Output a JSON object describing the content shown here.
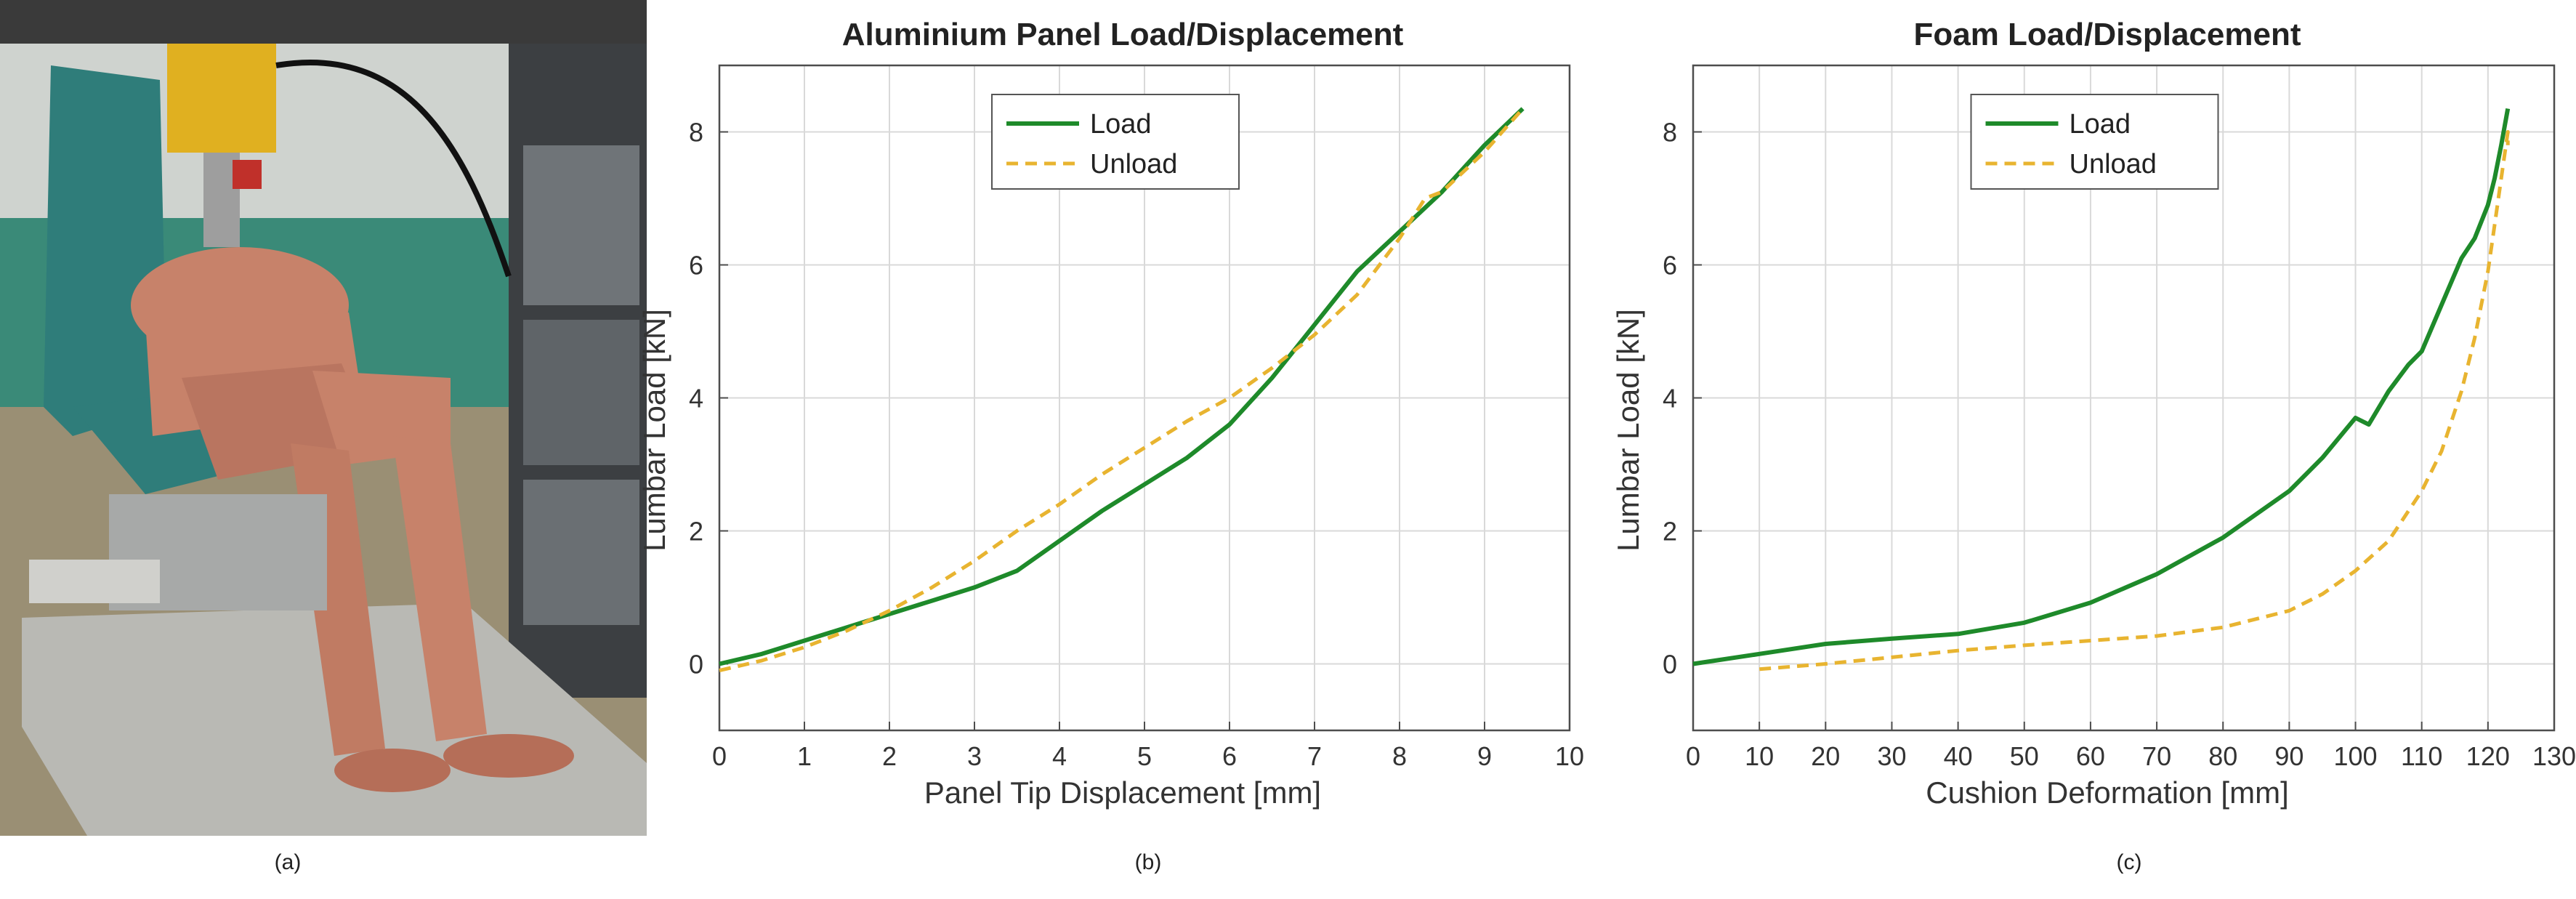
{
  "figure": {
    "captions": [
      "(a)",
      "(b)",
      "(c)"
    ],
    "photo": {
      "description_icon": "seat-dummy-test-rig-photo"
    },
    "colors": {
      "load": "#1e8a2a",
      "unload": "#e8b430",
      "grid": "#d9d9d9",
      "axis": "#4d4d4d"
    }
  },
  "chart_data": [
    {
      "type": "line",
      "title": "Aluminium Panel Load/Displacement",
      "xlabel": "Panel Tip Displacement [mm]",
      "ylabel": "Lumbar Load [kN]",
      "xlim": [
        0,
        10
      ],
      "ylim": [
        -1,
        9
      ],
      "xticks": [
        0,
        1,
        2,
        3,
        4,
        5,
        6,
        7,
        8,
        9,
        10
      ],
      "yticks": [
        0,
        2,
        4,
        6,
        8
      ],
      "grid": true,
      "legend": "top-center",
      "series": [
        {
          "name": "Load",
          "style": "solid",
          "color": "#1e8a2a",
          "x": [
            0,
            0.5,
            1,
            1.5,
            2,
            2.5,
            3,
            3.5,
            4,
            4.5,
            5,
            5.5,
            6,
            6.5,
            7,
            7.5,
            8,
            8.5,
            9,
            9.45
          ],
          "y": [
            0,
            0.15,
            0.35,
            0.55,
            0.75,
            0.95,
            1.15,
            1.4,
            1.85,
            2.3,
            2.7,
            3.1,
            3.6,
            4.3,
            5.1,
            5.9,
            6.5,
            7.1,
            7.8,
            8.35
          ]
        },
        {
          "name": "Unload",
          "style": "dashed",
          "color": "#e8b430",
          "x": [
            0,
            0.5,
            1,
            1.5,
            2,
            2.5,
            3,
            3.5,
            4,
            4.5,
            5,
            5.5,
            6,
            6.5,
            7,
            7.5,
            8,
            8.3,
            8.5,
            9,
            9.45
          ],
          "y": [
            -0.1,
            0.05,
            0.25,
            0.5,
            0.8,
            1.15,
            1.55,
            2.0,
            2.4,
            2.85,
            3.25,
            3.65,
            4.0,
            4.45,
            4.95,
            5.55,
            6.4,
            7.0,
            7.1,
            7.7,
            8.35
          ]
        }
      ]
    },
    {
      "type": "line",
      "title": "Foam Load/Displacement",
      "xlabel": "Cushion Deformation [mm]",
      "ylabel": "Lumbar Load [kN]",
      "xlim": [
        0,
        130
      ],
      "ylim": [
        -1,
        9
      ],
      "xticks": [
        0,
        10,
        20,
        30,
        40,
        50,
        60,
        70,
        80,
        90,
        100,
        110,
        120,
        130
      ],
      "yticks": [
        0,
        2,
        4,
        6,
        8
      ],
      "grid": true,
      "legend": "top-center",
      "series": [
        {
          "name": "Load",
          "style": "solid",
          "color": "#1e8a2a",
          "x": [
            0,
            10,
            20,
            30,
            40,
            50,
            60,
            70,
            80,
            90,
            95,
            100,
            102,
            105,
            108,
            110,
            113,
            116,
            118,
            120,
            121,
            122,
            123
          ],
          "y": [
            0,
            0.15,
            0.3,
            0.38,
            0.45,
            0.62,
            0.92,
            1.35,
            1.9,
            2.6,
            3.1,
            3.7,
            3.6,
            4.1,
            4.5,
            4.7,
            5.4,
            6.1,
            6.4,
            6.9,
            7.3,
            7.8,
            8.35
          ]
        },
        {
          "name": "Unload",
          "style": "dashed",
          "color": "#e8b430",
          "x": [
            10,
            20,
            30,
            40,
            50,
            60,
            70,
            80,
            90,
            95,
            100,
            105,
            110,
            113,
            116,
            118,
            120,
            121,
            122,
            123,
            123
          ],
          "y": [
            -0.08,
            0.0,
            0.1,
            0.2,
            0.28,
            0.35,
            0.42,
            0.55,
            0.8,
            1.05,
            1.4,
            1.85,
            2.6,
            3.2,
            4.1,
            4.9,
            5.9,
            6.6,
            7.3,
            8.0,
            7.8
          ]
        }
      ]
    }
  ]
}
